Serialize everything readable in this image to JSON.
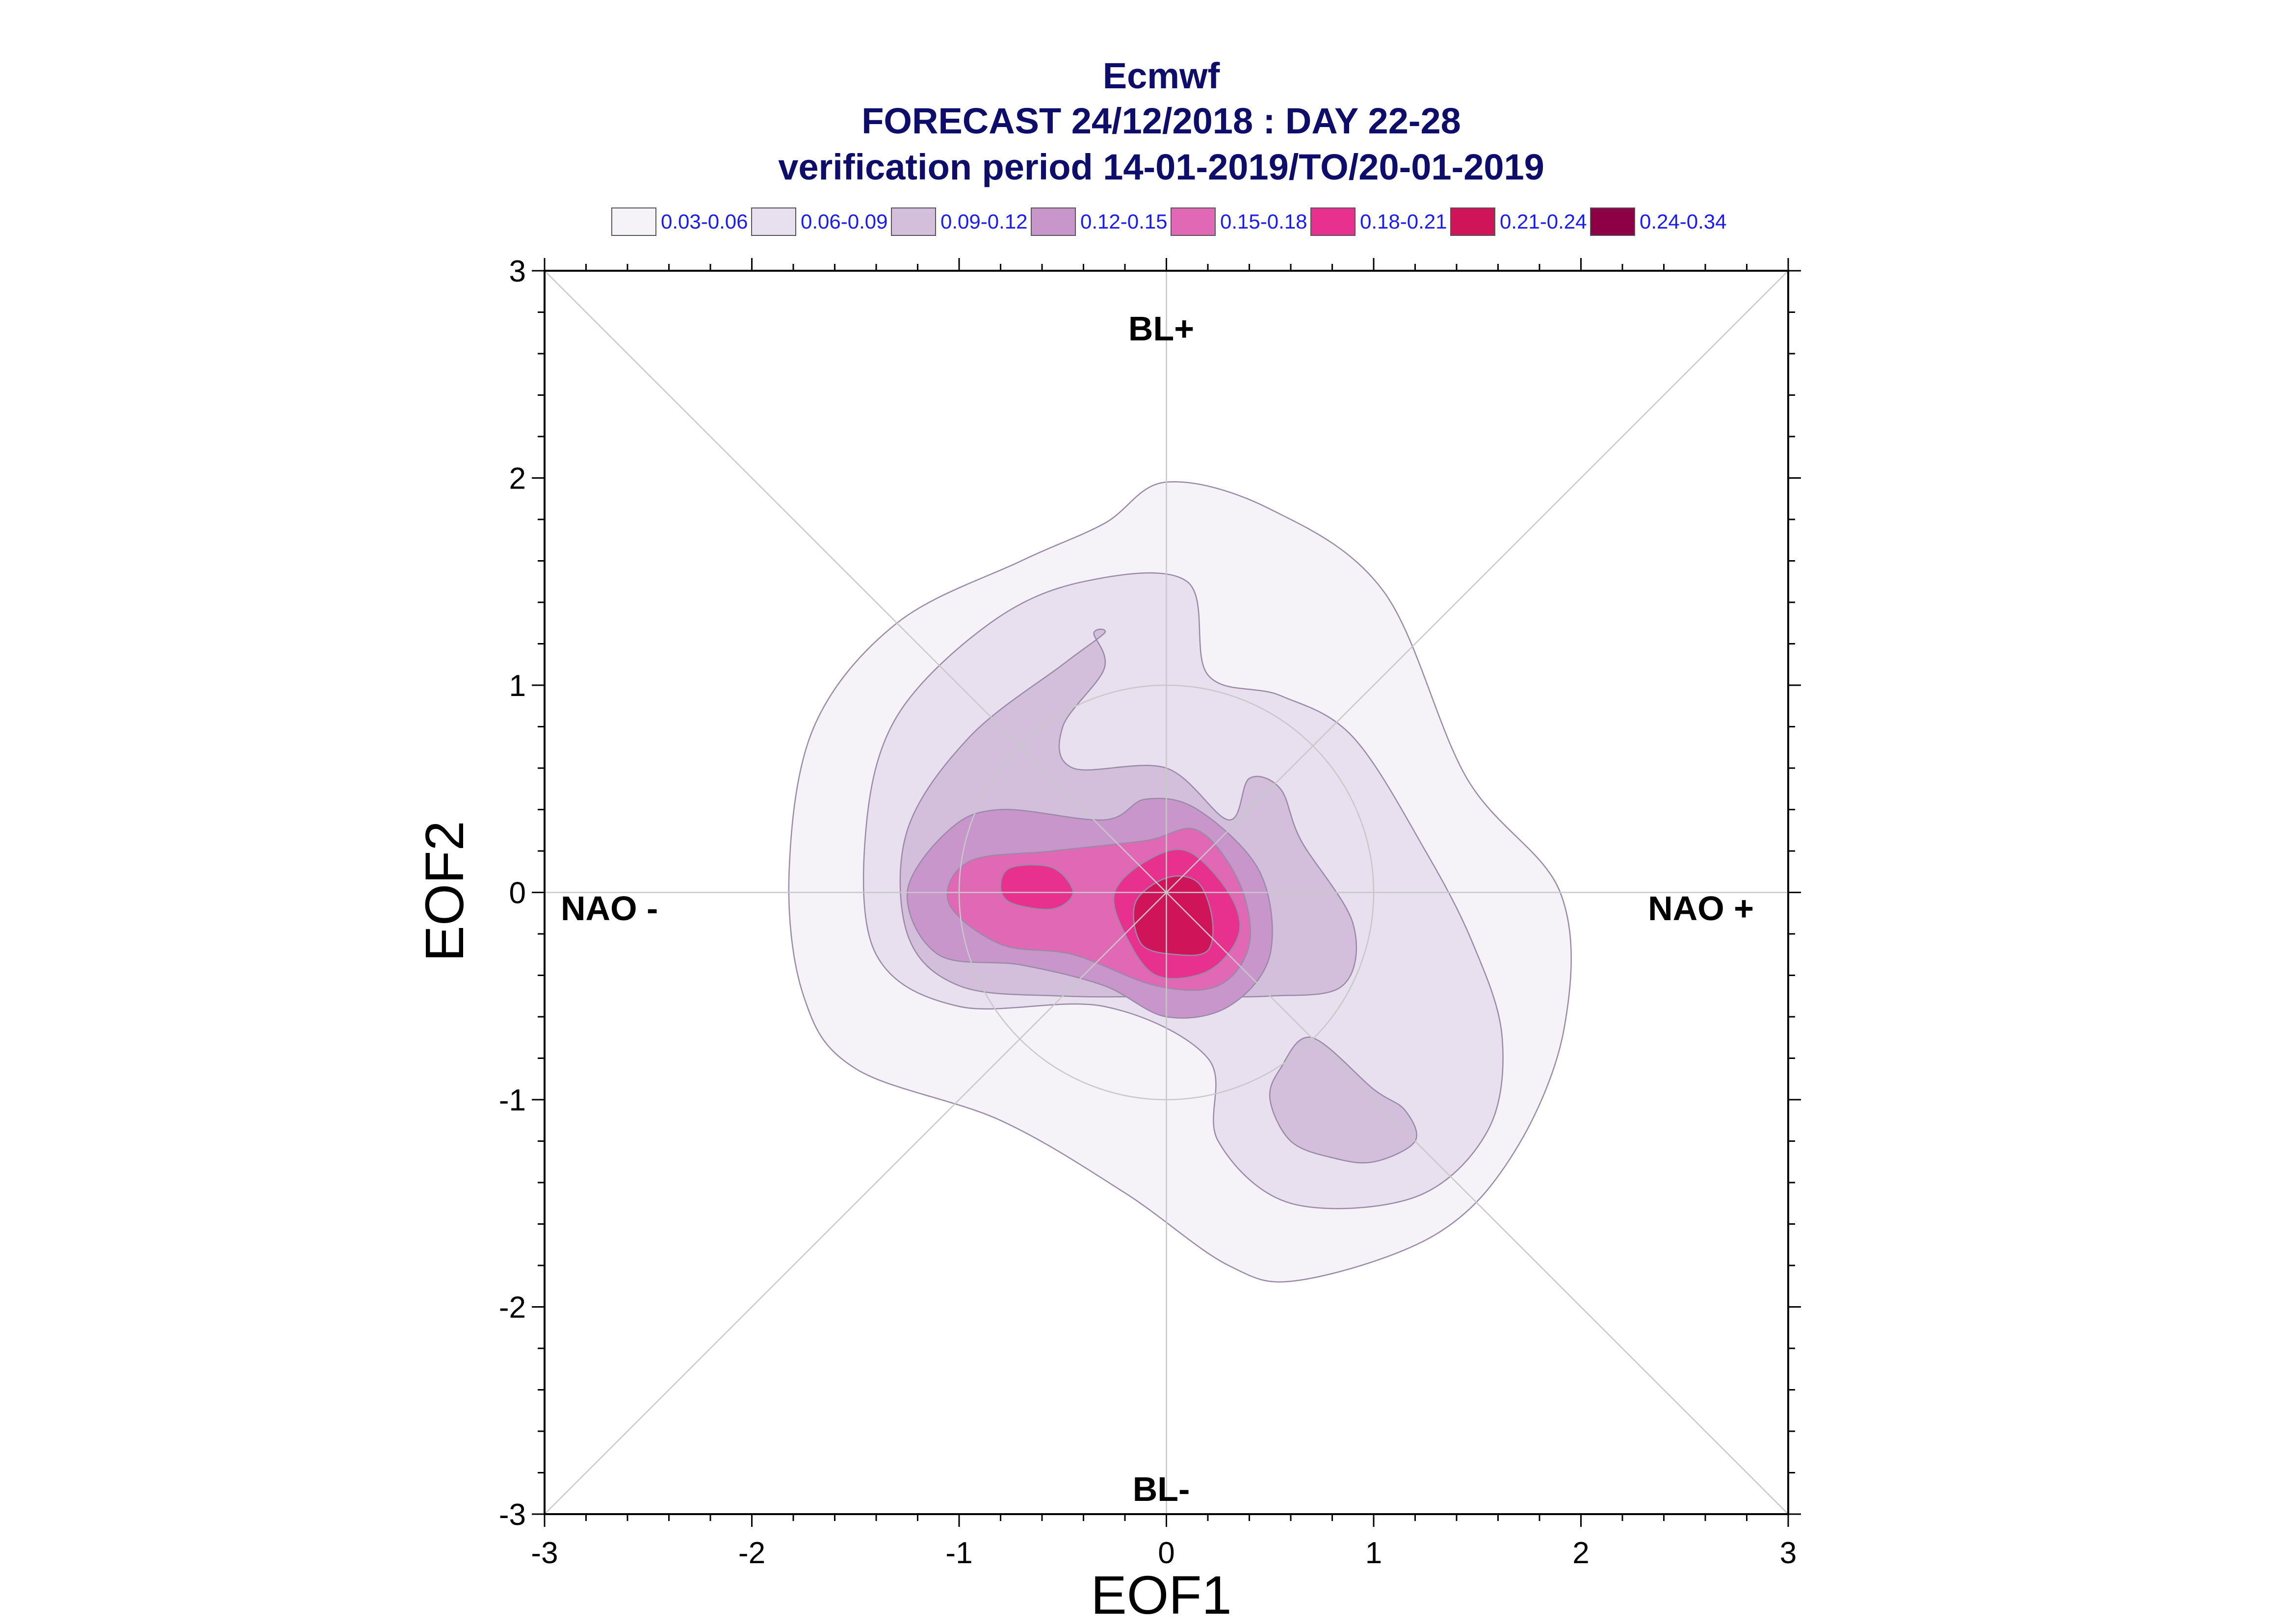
{
  "chart_data": {
    "type": "heatmap",
    "title_lines": [
      "Ecmwf",
      "FORECAST 24/12/2018 : DAY 22-28",
      "verification period 14-01-2019/TO/20-01-2019"
    ],
    "xlabel": "EOF1",
    "ylabel": "EOF2",
    "xlim": [
      -3,
      3
    ],
    "ylim": [
      -3,
      3
    ],
    "x_ticks": [
      "-3",
      "-2",
      "-1",
      "0",
      "1",
      "2",
      "3"
    ],
    "y_ticks": [
      "3",
      "2",
      "1",
      "0",
      "-1",
      "-2",
      "-3"
    ],
    "legend": [
      {
        "label": "0.03-0.06",
        "color": "#f5f3f8"
      },
      {
        "label": "0.06-0.09",
        "color": "#e8e0ee"
      },
      {
        "label": "0.09-0.12",
        "color": "#d3bfdb"
      },
      {
        "label": "0.12-0.15",
        "color": "#c996cc"
      },
      {
        "label": "0.15-0.18",
        "color": "#e068b4"
      },
      {
        "label": "0.18-0.21",
        "color": "#e8308f"
      },
      {
        "label": "0.21-0.24",
        "color": "#d0145a"
      },
      {
        "label": "0.24-0.34",
        "color": "#8e0046"
      }
    ],
    "regime_labels": {
      "top": "BL+",
      "bottom": "BL-",
      "left": "NAO -",
      "right": "NAO +"
    },
    "reference_circle_radius": 1,
    "contours": [
      {
        "level": "0.03-0.06",
        "points": [
          [
            0,
            1.98
          ],
          [
            0.5,
            1.85
          ],
          [
            1.05,
            1.45
          ],
          [
            1.45,
            0.55
          ],
          [
            1.9,
            0.0
          ],
          [
            1.92,
            -0.65
          ],
          [
            1.68,
            -1.25
          ],
          [
            1.3,
            -1.65
          ],
          [
            0.65,
            -1.87
          ],
          [
            0.3,
            -1.8
          ],
          [
            -0.2,
            -1.45
          ],
          [
            -0.8,
            -1.1
          ],
          [
            -1.5,
            -0.85
          ],
          [
            -1.75,
            -0.5
          ],
          [
            -1.82,
            0.1
          ],
          [
            -1.7,
            0.8
          ],
          [
            -1.3,
            1.3
          ],
          [
            -0.7,
            1.6
          ],
          [
            -0.3,
            1.78
          ]
        ]
      },
      {
        "level": "0.06-0.09",
        "points": [
          [
            0.1,
            1.5
          ],
          [
            0.2,
            1.05
          ],
          [
            0.55,
            0.95
          ],
          [
            0.9,
            0.75
          ],
          [
            1.25,
            0.2
          ],
          [
            1.48,
            -0.25
          ],
          [
            1.62,
            -0.7
          ],
          [
            1.55,
            -1.15
          ],
          [
            1.2,
            -1.47
          ],
          [
            0.6,
            -1.5
          ],
          [
            0.25,
            -1.2
          ],
          [
            0.2,
            -0.8
          ],
          [
            -0.3,
            -0.55
          ],
          [
            -1.0,
            -0.55
          ],
          [
            -1.4,
            -0.3
          ],
          [
            -1.45,
            0.3
          ],
          [
            -1.3,
            0.85
          ],
          [
            -0.85,
            1.3
          ],
          [
            -0.4,
            1.5
          ]
        ]
      },
      {
        "level": "0.09-0.12",
        "points": [
          [
            -0.3,
            1.25
          ],
          [
            -0.5,
            1.1
          ],
          [
            -0.95,
            0.75
          ],
          [
            -1.25,
            0.3
          ],
          [
            -1.25,
            -0.2
          ],
          [
            -1.0,
            -0.45
          ],
          [
            -0.5,
            -0.5
          ],
          [
            0.1,
            -0.5
          ],
          [
            0.5,
            -0.5
          ],
          [
            0.85,
            -0.45
          ],
          [
            0.9,
            -0.15
          ],
          [
            0.65,
            0.25
          ],
          [
            0.55,
            0.5
          ],
          [
            0.4,
            0.55
          ],
          [
            0.3,
            0.35
          ],
          [
            0.0,
            0.6
          ],
          [
            -0.45,
            0.6
          ],
          [
            -0.5,
            0.8
          ],
          [
            -0.3,
            1.08
          ],
          [
            -0.35,
            1.25
          ]
        ]
      },
      {
        "level": "0.09-0.12",
        "points": [
          [
            0.7,
            -0.7
          ],
          [
            1.0,
            -0.95
          ],
          [
            1.15,
            -1.05
          ],
          [
            1.2,
            -1.2
          ],
          [
            1.0,
            -1.3
          ],
          [
            0.8,
            -1.28
          ],
          [
            0.6,
            -1.2
          ],
          [
            0.5,
            -1.0
          ],
          [
            0.55,
            -0.85
          ]
        ]
      },
      {
        "level": "0.12-0.15",
        "points": [
          [
            -1.05,
            0.3
          ],
          [
            -0.8,
            0.4
          ],
          [
            -0.3,
            0.35
          ],
          [
            -0.1,
            0.45
          ],
          [
            0.15,
            0.4
          ],
          [
            0.45,
            0.1
          ],
          [
            0.5,
            -0.3
          ],
          [
            0.3,
            -0.55
          ],
          [
            0.0,
            -0.6
          ],
          [
            -0.3,
            -0.45
          ],
          [
            -0.7,
            -0.35
          ],
          [
            -1.1,
            -0.3
          ],
          [
            -1.25,
            0.0
          ]
        ]
      },
      {
        "level": "0.15-0.18",
        "points": [
          [
            -0.95,
            0.15
          ],
          [
            -0.55,
            0.2
          ],
          [
            -0.1,
            0.25
          ],
          [
            0.15,
            0.3
          ],
          [
            0.35,
            0.05
          ],
          [
            0.4,
            -0.25
          ],
          [
            0.25,
            -0.45
          ],
          [
            -0.05,
            -0.45
          ],
          [
            -0.45,
            -0.3
          ],
          [
            -0.8,
            -0.25
          ],
          [
            -1.05,
            -0.05
          ]
        ]
      },
      {
        "level": "0.18-0.21",
        "points": [
          [
            -0.75,
            0.12
          ],
          [
            -0.55,
            0.12
          ],
          [
            -0.45,
            0.0
          ],
          [
            -0.55,
            -0.08
          ],
          [
            -0.75,
            -0.05
          ],
          [
            -0.8,
            0.03
          ]
        ]
      },
      {
        "level": "0.18-0.21",
        "points": [
          [
            -0.1,
            0.15
          ],
          [
            0.1,
            0.2
          ],
          [
            0.3,
            0.0
          ],
          [
            0.35,
            -0.2
          ],
          [
            0.2,
            -0.38
          ],
          [
            -0.05,
            -0.4
          ],
          [
            -0.2,
            -0.2
          ],
          [
            -0.25,
            0.0
          ]
        ]
      },
      {
        "level": "0.21-0.24",
        "points": [
          [
            0.0,
            0.07
          ],
          [
            0.15,
            0.05
          ],
          [
            0.22,
            -0.12
          ],
          [
            0.2,
            -0.28
          ],
          [
            0.05,
            -0.3
          ],
          [
            -0.12,
            -0.25
          ],
          [
            -0.15,
            -0.05
          ]
        ]
      }
    ]
  }
}
